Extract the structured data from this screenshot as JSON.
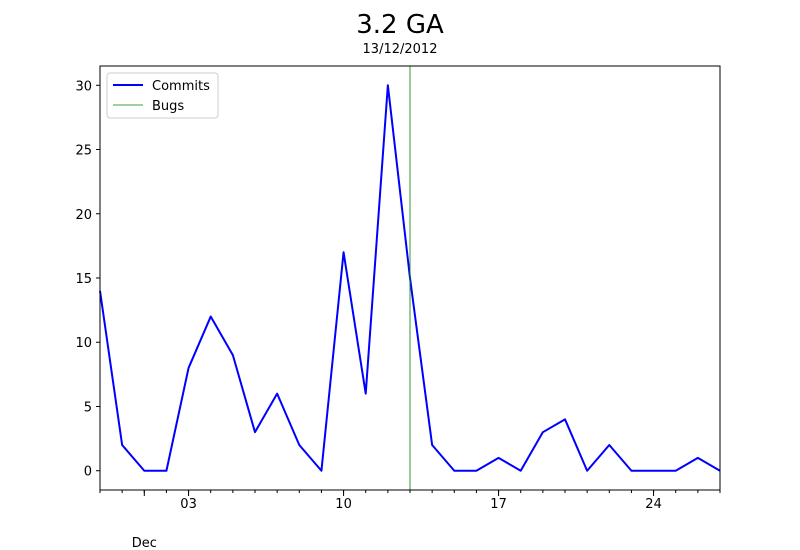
{
  "chart_data": {
    "type": "line",
    "title": "3.2 GA",
    "subtitle": "13/12/2012",
    "xlabel": "",
    "ylabel": "",
    "x_axis": {
      "start_date": "2012-11-29",
      "end_date": "2012-12-27",
      "major_ticks": [
        {
          "date": "2012-12-03",
          "label": "03"
        },
        {
          "date": "2012-12-10",
          "label": "10"
        },
        {
          "date": "2012-12-17",
          "label": "17"
        },
        {
          "date": "2012-12-24",
          "label": "24"
        }
      ],
      "month_label": {
        "date": "2012-12-01",
        "label": "Dec"
      }
    },
    "ylim": [
      -1.5,
      31.5
    ],
    "yticks": [
      0,
      5,
      10,
      15,
      20,
      25,
      30
    ],
    "grid": false,
    "legend_position": "top-left",
    "series": [
      {
        "name": "Commits",
        "kind": "line",
        "color": "#0000ff",
        "points": [
          {
            "date": "2012-11-29",
            "value": 14
          },
          {
            "date": "2012-11-30",
            "value": 2
          },
          {
            "date": "2012-12-01",
            "value": 0
          },
          {
            "date": "2012-12-02",
            "value": 0
          },
          {
            "date": "2012-12-03",
            "value": 8
          },
          {
            "date": "2012-12-04",
            "value": 12
          },
          {
            "date": "2012-12-05",
            "value": 9
          },
          {
            "date": "2012-12-06",
            "value": 3
          },
          {
            "date": "2012-12-07",
            "value": 6
          },
          {
            "date": "2012-12-08",
            "value": 2
          },
          {
            "date": "2012-12-09",
            "value": 0
          },
          {
            "date": "2012-12-10",
            "value": 17
          },
          {
            "date": "2012-12-11",
            "value": 6
          },
          {
            "date": "2012-12-12",
            "value": 30
          },
          {
            "date": "2012-12-13",
            "value": 15
          },
          {
            "date": "2012-12-14",
            "value": 2
          },
          {
            "date": "2012-12-15",
            "value": 0
          },
          {
            "date": "2012-12-16",
            "value": 0
          },
          {
            "date": "2012-12-17",
            "value": 1
          },
          {
            "date": "2012-12-18",
            "value": 0
          },
          {
            "date": "2012-12-19",
            "value": 3
          },
          {
            "date": "2012-12-20",
            "value": 4
          },
          {
            "date": "2012-12-21",
            "value": 0
          },
          {
            "date": "2012-12-22",
            "value": 2
          },
          {
            "date": "2012-12-23",
            "value": 0
          },
          {
            "date": "2012-12-24",
            "value": 0
          },
          {
            "date": "2012-12-25",
            "value": 0
          },
          {
            "date": "2012-12-26",
            "value": 1
          },
          {
            "date": "2012-12-27",
            "value": 0
          }
        ]
      },
      {
        "name": "Bugs",
        "kind": "vertical-line",
        "color": "#008000",
        "date": "2012-12-13"
      }
    ]
  }
}
